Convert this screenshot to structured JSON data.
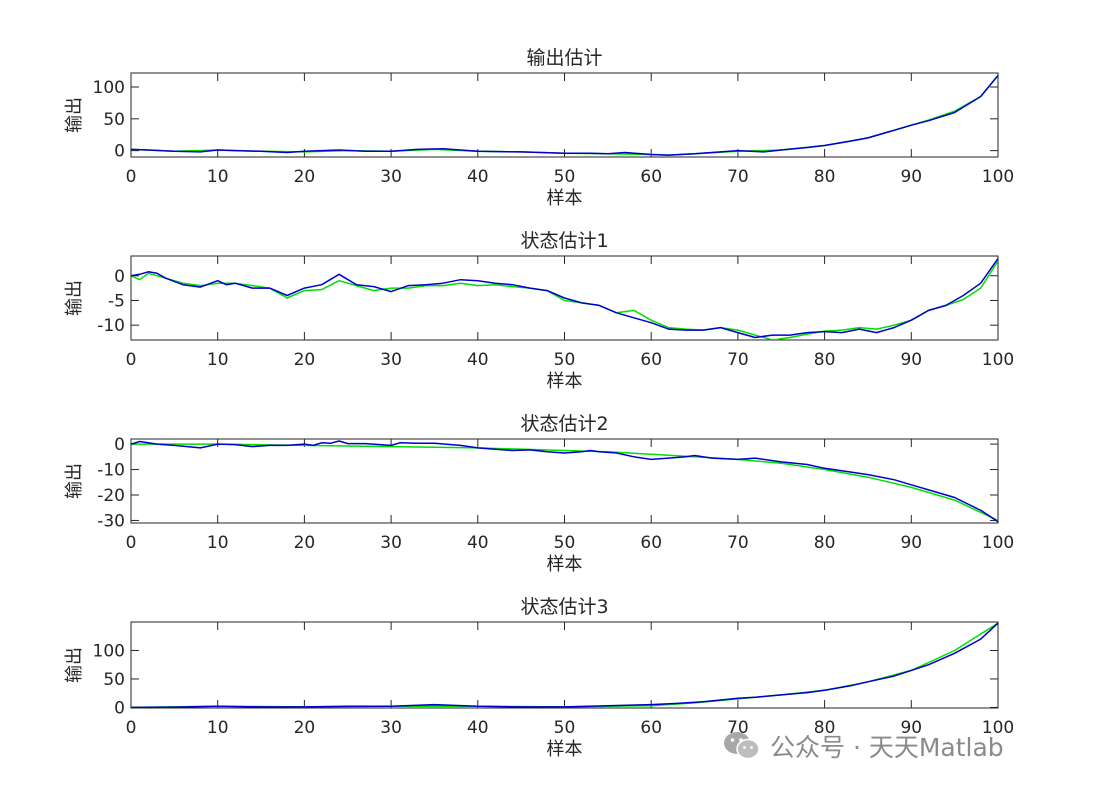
{
  "chart_data": [
    {
      "type": "line",
      "title": "输出估计",
      "xlabel": "样本",
      "ylabel": "输出",
      "xlim": [
        0,
        100
      ],
      "ylim": [
        -10,
        122
      ],
      "xticks": [
        0,
        10,
        20,
        30,
        40,
        50,
        60,
        70,
        80,
        90,
        100
      ],
      "yticks": [
        0,
        50,
        100
      ],
      "series": [
        {
          "color": "#00e000",
          "x": [
            0,
            5,
            10,
            15,
            20,
            25,
            30,
            35,
            40,
            45,
            50,
            55,
            60,
            62,
            65,
            70,
            75,
            80,
            85,
            88,
            90,
            92,
            95,
            98,
            100
          ],
          "values": [
            2,
            -1,
            1,
            -1,
            -2,
            0,
            -1,
            2,
            -1,
            -2,
            -4,
            -5,
            -6,
            -7,
            -5,
            -1,
            1,
            8,
            20,
            32,
            40,
            48,
            62,
            85,
            118
          ]
        },
        {
          "color": "#0000cc",
          "x": [
            0,
            2,
            5,
            8,
            10,
            12,
            15,
            18,
            20,
            24,
            27,
            30,
            33,
            36,
            40,
            45,
            50,
            53,
            55,
            57,
            60,
            62,
            65,
            70,
            73,
            75,
            78,
            80,
            83,
            85,
            88,
            90,
            92,
            95,
            98,
            100
          ],
          "values": [
            2,
            1,
            -1,
            -2,
            1,
            0,
            -1,
            -3,
            -1,
            1,
            -1,
            -1,
            2,
            3,
            -1,
            -2,
            -4,
            -4,
            -5,
            -3,
            -6,
            -7,
            -5,
            0,
            -2,
            1,
            5,
            8,
            15,
            20,
            32,
            40,
            47,
            60,
            85,
            118
          ]
        }
      ]
    },
    {
      "type": "line",
      "title": "状态估计1",
      "xlabel": "样本",
      "ylabel": "输出",
      "xlim": [
        0,
        100
      ],
      "ylim": [
        -13,
        4
      ],
      "xticks": [
        0,
        10,
        20,
        30,
        40,
        50,
        60,
        70,
        80,
        90,
        100
      ],
      "yticks": [
        -10,
        -5,
        0
      ],
      "series": [
        {
          "color": "#00e000",
          "x": [
            0,
            1,
            2,
            4,
            6,
            8,
            10,
            12,
            14,
            16,
            18,
            20,
            22,
            24,
            26,
            28,
            30,
            32,
            34,
            36,
            38,
            40,
            42,
            44,
            46,
            48,
            50,
            52,
            54,
            56,
            58,
            60,
            62,
            64,
            66,
            68,
            70,
            72,
            74,
            76,
            78,
            80,
            82,
            84,
            86,
            88,
            90,
            92,
            94,
            96,
            98,
            100
          ],
          "values": [
            0,
            -0.8,
            0.5,
            -0.5,
            -1.5,
            -2,
            -1.5,
            -1.5,
            -2,
            -2.5,
            -4.5,
            -3,
            -2.8,
            -1,
            -2,
            -3,
            -2.5,
            -2.5,
            -2,
            -2,
            -1.5,
            -2,
            -1.8,
            -2.2,
            -2.5,
            -3,
            -5,
            -5.5,
            -6,
            -7.5,
            -7,
            -9,
            -10.5,
            -10.8,
            -11,
            -10.5,
            -11,
            -12,
            -13,
            -12.5,
            -11.8,
            -11.2,
            -11,
            -10.5,
            -10.8,
            -10,
            -9,
            -7,
            -6,
            -4.8,
            -2.5,
            3
          ]
        },
        {
          "color": "#0000cc",
          "x": [
            0,
            1,
            2,
            3,
            4,
            6,
            8,
            10,
            11,
            12,
            14,
            16,
            18,
            20,
            22,
            24,
            26,
            28,
            30,
            32,
            34,
            36,
            38,
            40,
            42,
            44,
            46,
            48,
            50,
            52,
            54,
            56,
            58,
            60,
            62,
            64,
            66,
            68,
            70,
            72,
            74,
            76,
            78,
            80,
            82,
            84,
            86,
            88,
            90,
            92,
            94,
            96,
            98,
            100
          ],
          "values": [
            0,
            0.3,
            0.8,
            0.5,
            -0.5,
            -1.8,
            -2.3,
            -1,
            -1.8,
            -1.5,
            -2.5,
            -2.5,
            -4,
            -2.5,
            -1.8,
            0.3,
            -1.8,
            -2.2,
            -3.2,
            -2,
            -1.8,
            -1.5,
            -0.8,
            -1,
            -1.5,
            -1.8,
            -2.5,
            -3,
            -4.5,
            -5.5,
            -6,
            -7.5,
            -8.5,
            -9.5,
            -10.8,
            -11,
            -11,
            -10.5,
            -11.5,
            -12.5,
            -12,
            -12,
            -11.5,
            -11.3,
            -11.5,
            -10.8,
            -11.5,
            -10.5,
            -9,
            -7,
            -6,
            -4,
            -1.5,
            3.5
          ]
        }
      ]
    },
    {
      "type": "line",
      "title": "状态估计2",
      "xlabel": "样本",
      "ylabel": "输出",
      "xlim": [
        0,
        100
      ],
      "ylim": [
        -31,
        2
      ],
      "xticks": [
        0,
        10,
        20,
        30,
        40,
        50,
        60,
        70,
        80,
        90,
        100
      ],
      "yticks": [
        -30,
        -20,
        -10,
        0
      ],
      "series": [
        {
          "color": "#00e000",
          "x": [
            0,
            5,
            10,
            20,
            30,
            40,
            50,
            55,
            60,
            65,
            70,
            75,
            80,
            85,
            90,
            95,
            100
          ],
          "values": [
            0,
            0,
            0,
            -0.5,
            -1,
            -1.5,
            -2.5,
            -3,
            -4,
            -5,
            -6,
            -7.5,
            -10,
            -13,
            -17,
            -22,
            -30
          ]
        },
        {
          "color": "#0000cc",
          "x": [
            0,
            1,
            3,
            5,
            8,
            10,
            12,
            14,
            16,
            18,
            20,
            21,
            22,
            23,
            24,
            25,
            27,
            30,
            31,
            33,
            35,
            38,
            40,
            42,
            44,
            46,
            48,
            50,
            52,
            53,
            54,
            56,
            58,
            60,
            62,
            64,
            65,
            67,
            70,
            72,
            75,
            78,
            80,
            82,
            85,
            88,
            90,
            92,
            95,
            98,
            100
          ],
          "values": [
            0,
            1,
            0,
            -0.5,
            -1.5,
            0,
            -0.2,
            -1,
            -0.5,
            -0.5,
            0,
            -0.5,
            0.5,
            0.3,
            1.2,
            0.2,
            0.2,
            -0.5,
            0.5,
            0.3,
            0.3,
            -0.5,
            -1.5,
            -2,
            -2.5,
            -2.3,
            -3,
            -3.5,
            -3,
            -2.5,
            -3,
            -3.5,
            -5,
            -6,
            -5.5,
            -5,
            -4.5,
            -5.5,
            -6,
            -5.5,
            -7,
            -8,
            -9.5,
            -10.5,
            -12,
            -14,
            -16,
            -18,
            -21,
            -26,
            -30.5
          ]
        }
      ]
    },
    {
      "type": "line",
      "title": "状态估计3",
      "xlabel": "样本",
      "ylabel": "输出",
      "xlim": [
        0,
        100
      ],
      "ylim": [
        -1,
        150
      ],
      "xticks": [
        0,
        10,
        20,
        30,
        40,
        50,
        60,
        70,
        80,
        90,
        100
      ],
      "yticks": [
        0,
        50,
        100
      ],
      "series": [
        {
          "color": "#00e000",
          "x": [
            0,
            10,
            20,
            30,
            40,
            50,
            60,
            65,
            70,
            75,
            80,
            85,
            90,
            95,
            100
          ],
          "values": [
            0,
            2,
            1,
            2,
            2,
            1,
            3,
            8,
            15,
            22,
            30,
            45,
            65,
            100,
            148
          ]
        },
        {
          "color": "#0000cc",
          "x": [
            0,
            5,
            10,
            15,
            20,
            25,
            30,
            35,
            40,
            45,
            50,
            55,
            60,
            63,
            66,
            70,
            72,
            75,
            78,
            80,
            83,
            85,
            88,
            90,
            92,
            95,
            98,
            100
          ],
          "values": [
            0,
            0.5,
            2,
            1,
            1,
            2,
            2,
            5,
            2,
            1,
            1,
            3,
            5,
            7,
            10,
            16,
            18,
            22,
            26,
            30,
            38,
            45,
            55,
            65,
            75,
            95,
            120,
            148
          ]
        }
      ]
    }
  ],
  "watermark": {
    "icon": "wechat-icon",
    "text": "公众号 · 天天Matlab"
  }
}
